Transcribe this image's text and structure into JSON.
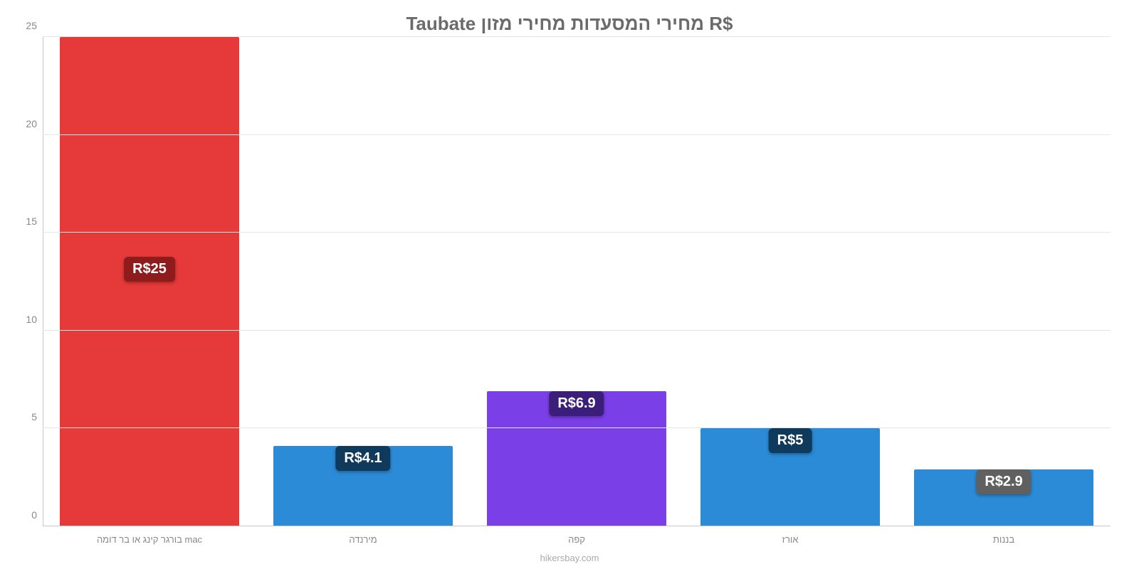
{
  "chart": {
    "type": "bar",
    "title": "Taubate מחירי המסעדות מחירי מזון R$",
    "title_fontsize": 26,
    "title_color": "#6b6b6b",
    "background_color": "#ffffff",
    "grid_color": "#e5e5e5",
    "axis_color": "#c8c8c8",
    "ylim": [
      0,
      25
    ],
    "ytick_step": 5,
    "yticks": [
      0,
      5,
      10,
      15,
      20,
      25
    ],
    "label_color": "#888888",
    "label_fontsize": 14,
    "xlabel_fontsize": 13,
    "bar_width_pct": 84,
    "categories": [
      "בורגר קינג או בר דומה mac",
      "מירנדה",
      "קפה",
      "אורז",
      "בננות"
    ],
    "values": [
      25,
      4.1,
      6.9,
      5,
      2.9
    ],
    "value_labels": [
      "R$25",
      "R$4.1",
      "R$6.9",
      "R$5",
      "R$2.9"
    ],
    "bar_colors": [
      "#e63939",
      "#2b8bd6",
      "#7a3fe6",
      "#2b8bd6",
      "#2b8bd6"
    ],
    "badge_colors": [
      "#8f1c1c",
      "#0f3a5c",
      "#3b1e7a",
      "#0f3a5c",
      "#606060"
    ],
    "badge_fontsize": 20,
    "attribution": "hikersbay.com",
    "attribution_color": "#aaaaaa"
  }
}
